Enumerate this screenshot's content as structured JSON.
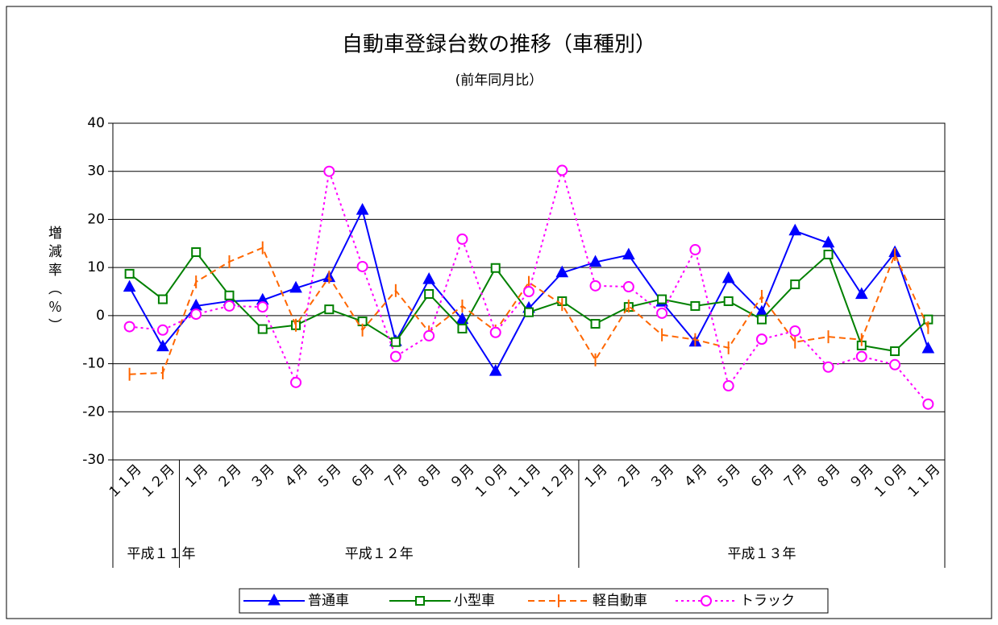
{
  "chart_data": {
    "type": "line",
    "title": "自動車登録台数の推移（車種別）",
    "subtitle": "(前年同月比）",
    "y_label": "増減率（％）",
    "categories": [
      "１１月",
      "１２月",
      "１月",
      "２月",
      "３月",
      "４月",
      "５月",
      "６月",
      "７月",
      "８月",
      "９月",
      "１０月",
      "１１月",
      "１２月",
      "１月",
      "２月",
      "３月",
      "４月",
      "５月",
      "６月",
      "７月",
      "８月",
      "９月",
      "１０月",
      "１１月"
    ],
    "groups": [
      "平成１１年",
      "平成１２年",
      "平成１３年"
    ],
    "series": [
      {
        "name": "普通車",
        "color": "#0000ff",
        "marker": "triangle",
        "dash": "solid",
        "values": [
          5.9,
          -6.5,
          2.0,
          3.0,
          3.2,
          5.7,
          7.9,
          21.9,
          -5.4,
          7.5,
          -0.8,
          -11.6,
          1.5,
          8.9,
          11.1,
          12.6,
          2.8,
          -5.5,
          7.7,
          0.7,
          17.6,
          15.1,
          4.4,
          13.1,
          -6.9
        ]
      },
      {
        "name": "小型車",
        "color": "#008000",
        "marker": "square",
        "dash": "solid",
        "values": [
          8.7,
          3.4,
          13.2,
          4.2,
          -2.8,
          -2.0,
          1.3,
          -1.2,
          -5.5,
          4.5,
          -2.7,
          9.9,
          0.7,
          3.0,
          -1.7,
          1.8,
          3.4,
          2.0,
          3.0,
          -0.8,
          6.5,
          12.7,
          -6.2,
          -7.4,
          -0.8
        ]
      },
      {
        "name": "軽自動車",
        "color": "#ff6600",
        "marker": "bar",
        "dash": "dashed",
        "values": [
          -12.2,
          -11.9,
          7.0,
          11.2,
          14.1,
          -2.0,
          8.0,
          -3.0,
          5.2,
          -3.4,
          2.0,
          -3.2,
          6.9,
          2.3,
          -9.2,
          2.0,
          -4.0,
          -5.0,
          -6.7,
          4.0,
          -5.5,
          -4.4,
          -5.0,
          12.7,
          -2.5
        ]
      },
      {
        "name": "トラック",
        "color": "#ff00ff",
        "marker": "circle",
        "dash": "dotted",
        "values": [
          -2.3,
          -3.0,
          0.3,
          2.0,
          1.8,
          -13.9,
          30.0,
          10.2,
          -8.5,
          -4.2,
          15.9,
          -3.5,
          5.0,
          30.2,
          6.2,
          6.0,
          0.5,
          13.7,
          -14.6,
          -4.9,
          -3.2,
          -10.7,
          -8.5,
          -10.2,
          -18.4
        ]
      }
    ],
    "ylim": [
      -30,
      40
    ],
    "yticks": [
      -30,
      -20,
      -10,
      0,
      10,
      20,
      30,
      40
    ],
    "grid": true
  }
}
